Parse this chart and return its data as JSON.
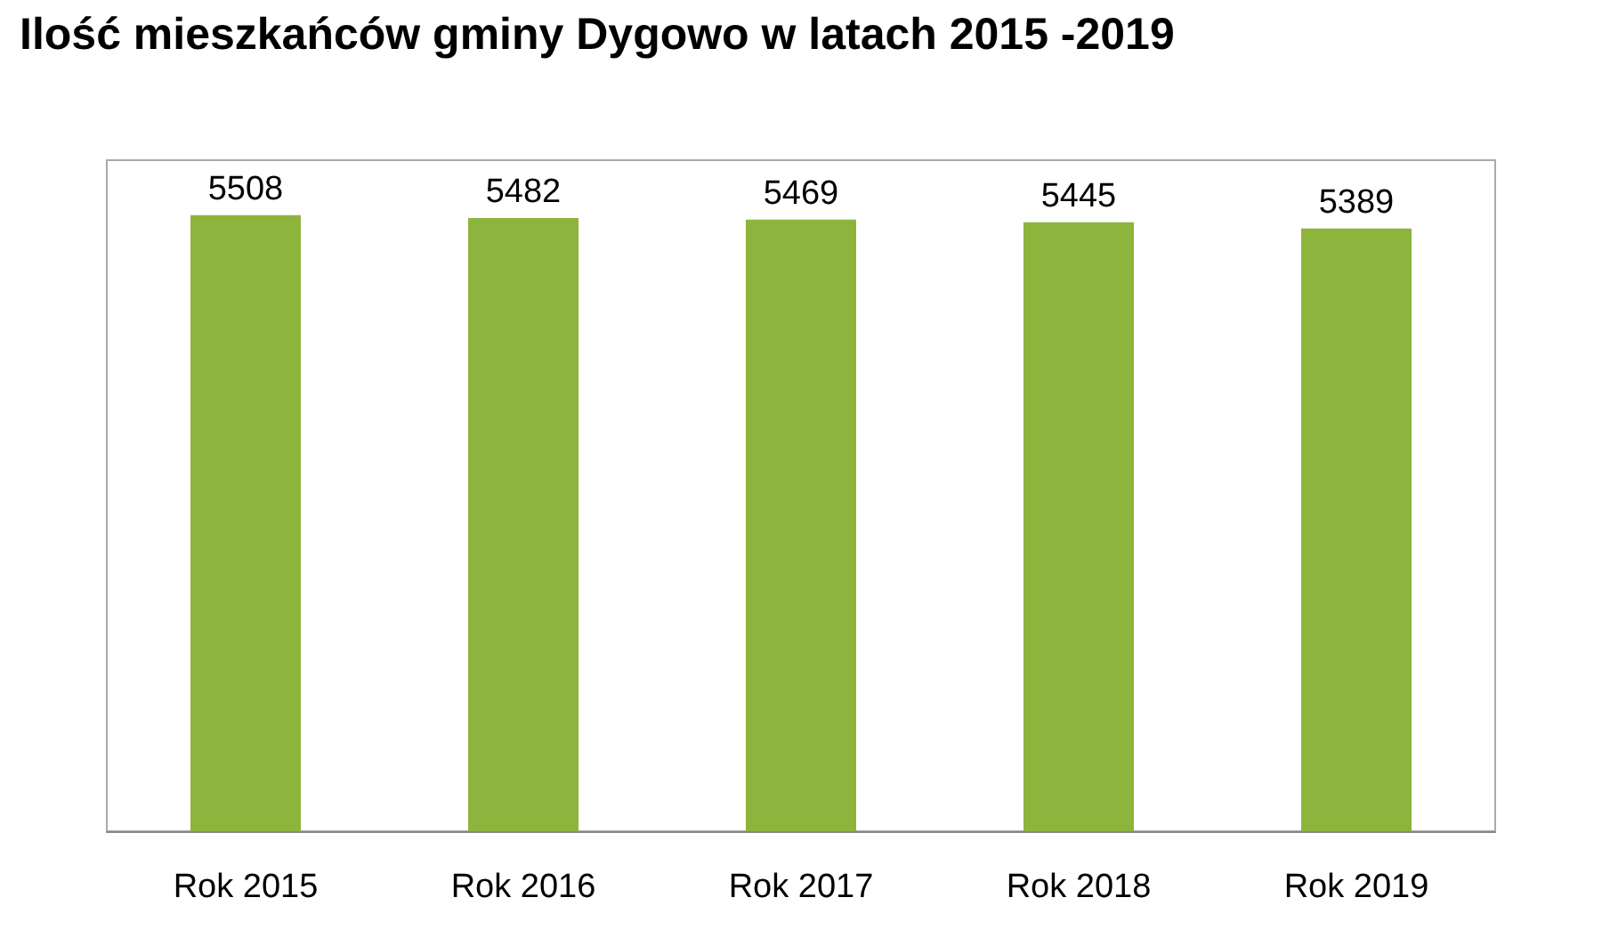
{
  "chart_data": {
    "type": "bar",
    "title": "Ilość mieszkańców gminy Dygowo w latach 2015 -2019",
    "categories": [
      "Rok 2015",
      "Rok 2016",
      "Rok 2017",
      "Rok 2018",
      "Rok 2019"
    ],
    "values": [
      5508,
      5482,
      5469,
      5445,
      5389
    ],
    "color": "#8db43c",
    "data_labels": true,
    "grid": false
  }
}
